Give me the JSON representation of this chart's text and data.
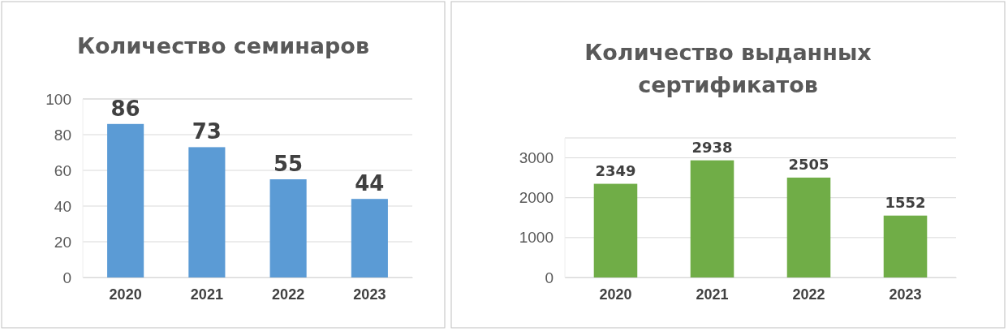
{
  "chart_data": [
    {
      "type": "bar",
      "title": "Количество семинаров",
      "categories": [
        "2020",
        "2021",
        "2022",
        "2023"
      ],
      "values": [
        86,
        73,
        55,
        44
      ],
      "color": "#5b9bd5",
      "ylim": [
        0,
        100
      ],
      "yticks": [
        0,
        20,
        40,
        60,
        80,
        100
      ],
      "grid": "y",
      "data_labels": true
    },
    {
      "type": "bar",
      "title": "Количество выданных сертификатов",
      "categories": [
        "2020",
        "2021",
        "2022",
        "2023"
      ],
      "values": [
        2349,
        2938,
        2505,
        1552
      ],
      "color": "#70ad47",
      "ylim": [
        0,
        3500
      ],
      "yticks": [
        0,
        1000,
        2000,
        3000
      ],
      "grid": "y",
      "data_labels": true
    }
  ]
}
